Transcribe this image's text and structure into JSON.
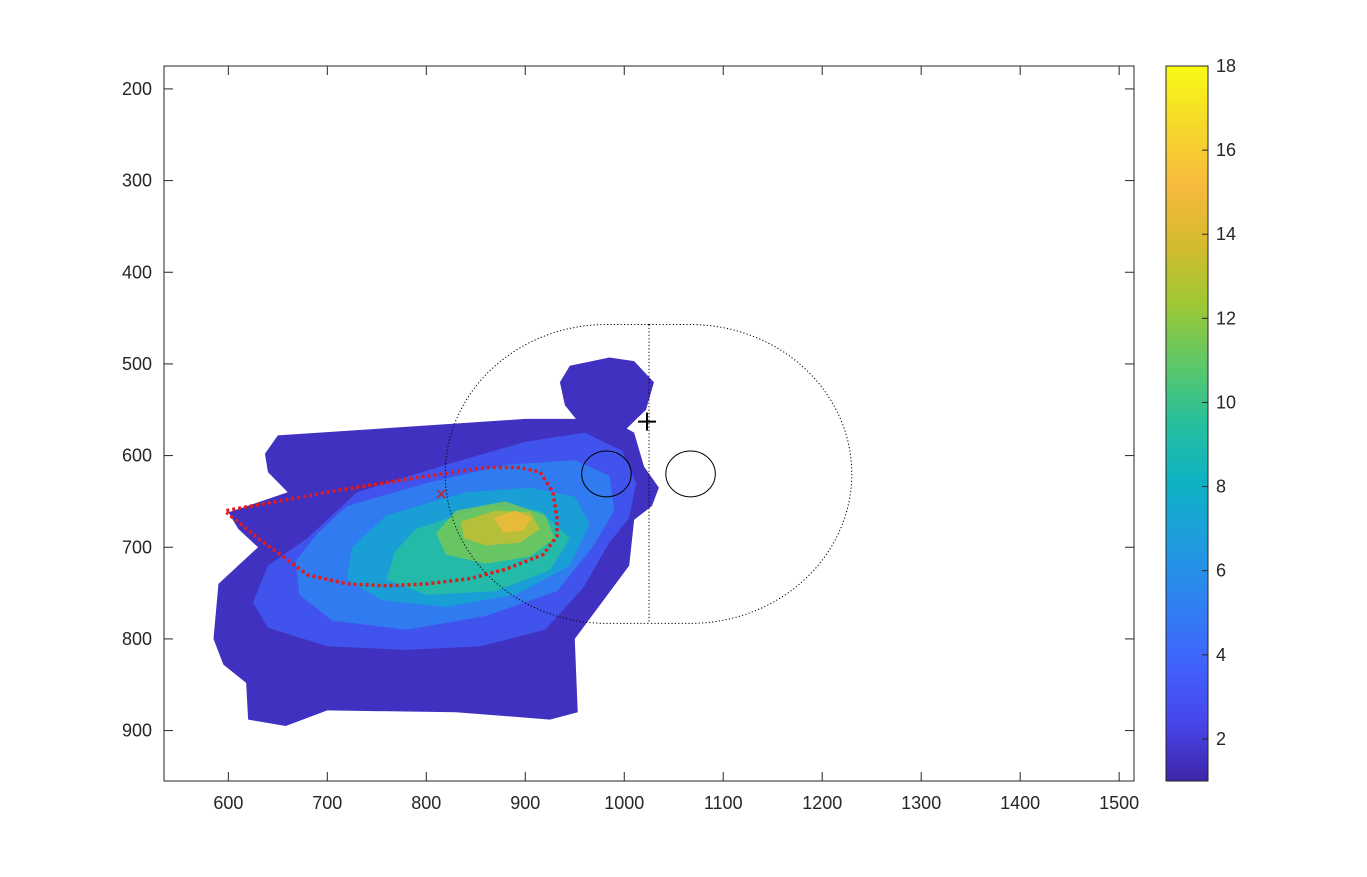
{
  "chart_data": {
    "type": "heatmap",
    "title": "",
    "xlabel": "",
    "ylabel": "",
    "xlim": [
      535,
      1515
    ],
    "ylim": [
      175,
      955
    ],
    "y_reversed": true,
    "x_ticks": [
      "600",
      "700",
      "800",
      "900",
      "1000",
      "1100",
      "1200",
      "1300",
      "1400",
      "1500"
    ],
    "y_ticks": [
      "200",
      "300",
      "400",
      "500",
      "600",
      "700",
      "800",
      "900"
    ],
    "grid": false,
    "colormap": "parula",
    "colorbar": {
      "range": [
        1,
        18
      ],
      "ticks": [
        "2",
        "4",
        "6",
        "8",
        "10",
        "12",
        "14",
        "16",
        "18"
      ],
      "colors": [
        "#3e26a8",
        "#4746eb",
        "#3f64fb",
        "#2f81f2",
        "#1e9cdf",
        "#0eb1c3",
        "#26c09e",
        "#5dc867",
        "#9ec834",
        "#d4bb2d",
        "#f8ba3d",
        "#f5d82a",
        "#f9fb15"
      ]
    },
    "density_layers": [
      {
        "value": 1.5,
        "points": [
          [
            650,
            578
          ],
          [
            900,
            560
          ],
          [
            985,
            560
          ],
          [
            1010,
            575
          ],
          [
            1020,
            612
          ],
          [
            1035,
            635
          ],
          [
            1028,
            655
          ],
          [
            1010,
            670
          ],
          [
            1005,
            720
          ],
          [
            950,
            800
          ],
          [
            953,
            880
          ],
          [
            925,
            888
          ],
          [
            830,
            880
          ],
          [
            700,
            878
          ],
          [
            658,
            895
          ],
          [
            620,
            888
          ],
          [
            618,
            848
          ],
          [
            595,
            828
          ],
          [
            585,
            800
          ],
          [
            590,
            740
          ],
          [
            630,
            700
          ],
          [
            610,
            680
          ],
          [
            600,
            662
          ],
          [
            660,
            640
          ],
          [
            640,
            618
          ],
          [
            637,
            598
          ]
        ]
      },
      {
        "value": 1.5,
        "points": [
          [
            985,
            493
          ],
          [
            1010,
            497
          ],
          [
            1030,
            520
          ],
          [
            1022,
            550
          ],
          [
            1000,
            573
          ],
          [
            960,
            572
          ],
          [
            940,
            545
          ],
          [
            935,
            520
          ],
          [
            945,
            502
          ]
        ]
      },
      {
        "value": 3.5,
        "points": [
          [
            730,
            640
          ],
          [
            820,
            610
          ],
          [
            900,
            585
          ],
          [
            960,
            575
          ],
          [
            998,
            595
          ],
          [
            1012,
            630
          ],
          [
            1005,
            668
          ],
          [
            985,
            695
          ],
          [
            958,
            745
          ],
          [
            920,
            790
          ],
          [
            855,
            808
          ],
          [
            780,
            812
          ],
          [
            700,
            808
          ],
          [
            640,
            788
          ],
          [
            625,
            760
          ],
          [
            640,
            720
          ],
          [
            680,
            690
          ]
        ]
      },
      {
        "value": 5.5,
        "points": [
          [
            720,
            655
          ],
          [
            800,
            630
          ],
          [
            880,
            610
          ],
          [
            950,
            605
          ],
          [
            985,
            622
          ],
          [
            990,
            660
          ],
          [
            968,
            700
          ],
          [
            932,
            748
          ],
          [
            860,
            775
          ],
          [
            780,
            790
          ],
          [
            705,
            780
          ],
          [
            672,
            752
          ],
          [
            668,
            715
          ],
          [
            690,
            685
          ]
        ]
      },
      {
        "value": 7.5,
        "points": [
          [
            760,
            665
          ],
          [
            840,
            640
          ],
          [
            905,
            635
          ],
          [
            950,
            645
          ],
          [
            965,
            675
          ],
          [
            945,
            720
          ],
          [
            890,
            752
          ],
          [
            820,
            765
          ],
          [
            755,
            758
          ],
          [
            720,
            735
          ],
          [
            725,
            700
          ]
        ]
      },
      {
        "value": 9.5,
        "points": [
          [
            790,
            680
          ],
          [
            860,
            655
          ],
          [
            915,
            660
          ],
          [
            945,
            690
          ],
          [
            925,
            725
          ],
          [
            870,
            748
          ],
          [
            800,
            752
          ],
          [
            760,
            735
          ],
          [
            768,
            705
          ]
        ]
      },
      {
        "value": 11.5,
        "points": [
          [
            830,
            660
          ],
          [
            880,
            650
          ],
          [
            920,
            665
          ],
          [
            930,
            690
          ],
          [
            905,
            710
          ],
          [
            860,
            718
          ],
          [
            820,
            708
          ],
          [
            810,
            685
          ]
        ]
      },
      {
        "value": 13.5,
        "points": [
          [
            835,
            672
          ],
          [
            870,
            660
          ],
          [
            905,
            662
          ],
          [
            915,
            680
          ],
          [
            895,
            695
          ],
          [
            860,
            698
          ],
          [
            838,
            690
          ]
        ]
      },
      {
        "value": 15,
        "points": [
          [
            868,
            668
          ],
          [
            890,
            660
          ],
          [
            906,
            668
          ],
          [
            898,
            682
          ],
          [
            878,
            684
          ]
        ]
      }
    ],
    "contour": {
      "value": 10,
      "color": "#e31a1c",
      "points": [
        [
          598,
          660
        ],
        [
          700,
          640
        ],
        [
          790,
          624
        ],
        [
          860,
          613
        ],
        [
          895,
          613
        ],
        [
          915,
          618
        ],
        [
          928,
          640
        ],
        [
          932,
          668
        ],
        [
          932,
          688
        ],
        [
          918,
          708
        ],
        [
          880,
          724
        ],
        [
          845,
          734
        ],
        [
          800,
          740
        ],
        [
          760,
          742
        ],
        [
          720,
          740
        ],
        [
          680,
          730
        ],
        [
          655,
          710
        ],
        [
          630,
          690
        ],
        [
          598,
          662
        ]
      ]
    },
    "markers": [
      {
        "type": "x",
        "x": 815,
        "y": 642,
        "color": "#c0272d"
      },
      {
        "type": "plus",
        "x": 1023,
        "y": 563,
        "color": "#000000"
      }
    ],
    "dotted_outline": {
      "center_left": [
        982,
        620
      ],
      "center_right": [
        1067,
        620
      ],
      "radius": 163,
      "divider_x": 1025
    },
    "small_circles": [
      {
        "cx": 982,
        "cy": 620,
        "r": 25
      },
      {
        "cx": 1067,
        "cy": 620,
        "r": 25
      }
    ]
  }
}
